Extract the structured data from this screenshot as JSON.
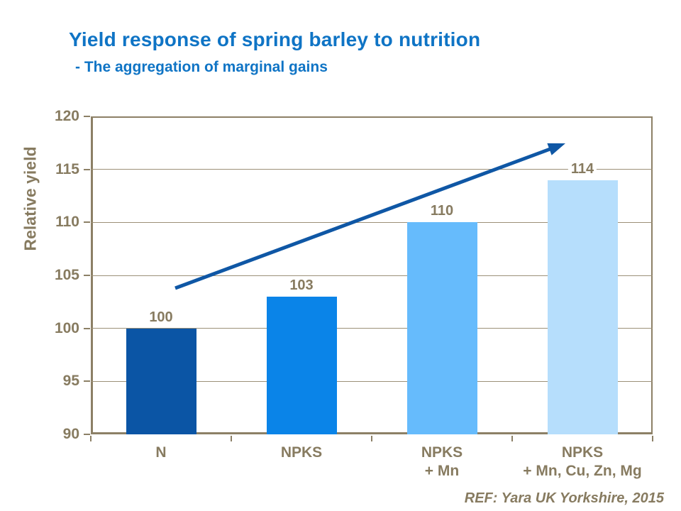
{
  "slide": {
    "title": "Yield response of spring barley to nutrition",
    "subtitle": "- The aggregation of marginal gains",
    "reference": "REF: Yara UK Yorkshire, 2015"
  },
  "colors": {
    "title_blue": "#0F74C5",
    "text_brown": "#877B60",
    "axis_brown": "#8C8066",
    "gridline_brown": "#9C9078",
    "arrow_blue": "#0F57A5",
    "background": "#FFFFFF"
  },
  "chart_data": {
    "type": "bar",
    "title": "",
    "categories": [
      "N",
      "NPKS",
      "NPKS\n+ Mn",
      "NPKS\n+ Mn, Cu, Zn, Mg"
    ],
    "values": [
      100,
      103,
      110,
      114
    ],
    "data_labels": [
      "100",
      "103",
      "110",
      "114"
    ],
    "bar_colors": [
      "#0B55A5",
      "#0A84E8",
      "#66BBFC",
      "#B6DEFC"
    ],
    "xlabel": "",
    "ylabel": "Relative yield",
    "ylim": [
      90,
      120
    ],
    "yticks": [
      90,
      95,
      100,
      105,
      110,
      115,
      120
    ],
    "grid": "horizontal",
    "legend": "none",
    "annotation_arrow": {
      "x1": 247,
      "y1": 406,
      "x2": 797,
      "y2": 202
    }
  }
}
